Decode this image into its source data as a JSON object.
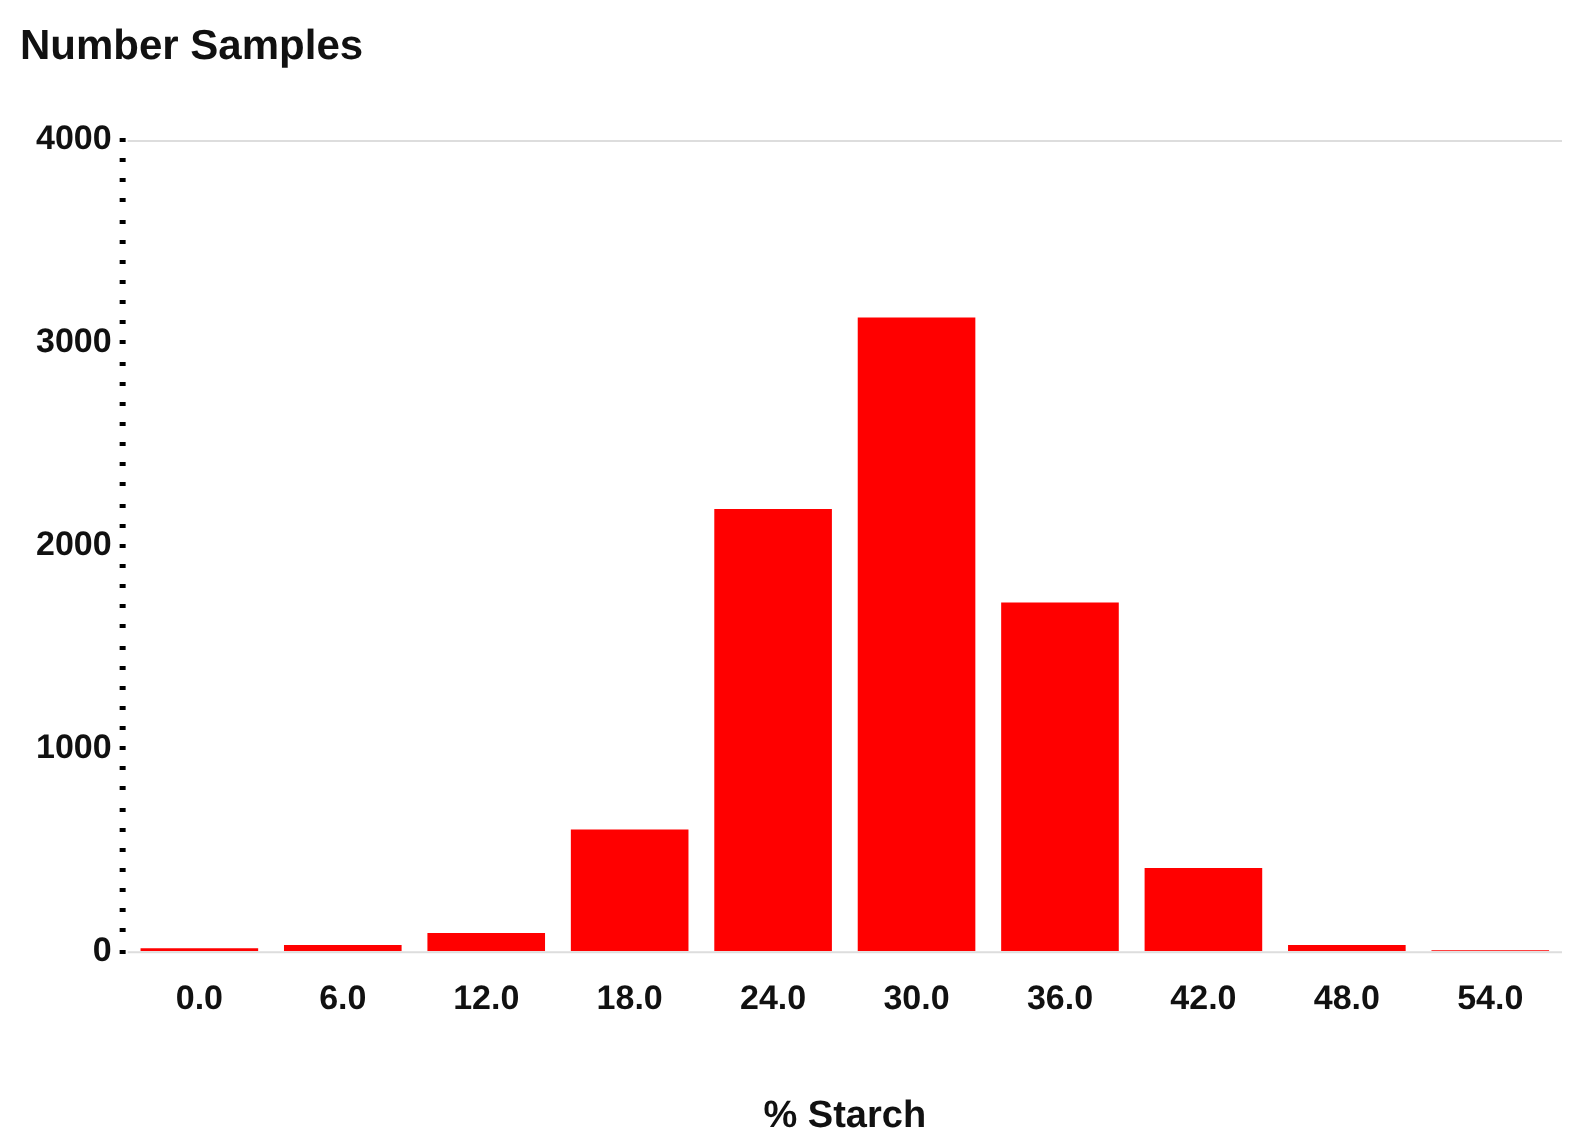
{
  "chart_data": {
    "type": "bar",
    "ylabel": "Number Samples",
    "xlabel": "% Starch",
    "categories": [
      "0.0",
      "6.0",
      "12.0",
      "18.0",
      "24.0",
      "30.0",
      "36.0",
      "42.0",
      "48.0",
      "54.0"
    ],
    "values": [
      15,
      30,
      90,
      600,
      2180,
      3125,
      1720,
      410,
      30,
      5
    ],
    "color": "#ff0000",
    "ylim": [
      0,
      4000
    ],
    "yticks": [
      0,
      {
        "value": 100,
        "label": null
      },
      {
        "value": 200,
        "label": null
      },
      {
        "value": 300,
        "label": null
      },
      {
        "value": 400,
        "label": null
      },
      {
        "value": 500,
        "label": null
      },
      {
        "value": 600,
        "label": null
      },
      {
        "value": 700,
        "label": null
      },
      {
        "value": 800,
        "label": null
      },
      {
        "value": 900,
        "label": null
      },
      1000,
      {
        "value": 1100,
        "label": null
      },
      {
        "value": 1200,
        "label": null
      },
      {
        "value": 1300,
        "label": null
      },
      {
        "value": 1400,
        "label": null
      },
      {
        "value": 1500,
        "label": null
      },
      {
        "value": 1600,
        "label": null
      },
      {
        "value": 1700,
        "label": null
      },
      {
        "value": 1800,
        "label": null
      },
      {
        "value": 1900,
        "label": null
      },
      2000,
      {
        "value": 2100,
        "label": null
      },
      {
        "value": 2200,
        "label": null
      },
      {
        "value": 2300,
        "label": null
      },
      {
        "value": 2400,
        "label": null
      },
      {
        "value": 2500,
        "label": null
      },
      {
        "value": 2600,
        "label": null
      },
      {
        "value": 2700,
        "label": null
      },
      {
        "value": 2800,
        "label": null
      },
      {
        "value": 2900,
        "label": null
      },
      3000,
      {
        "value": 3100,
        "label": null
      },
      {
        "value": 3200,
        "label": null
      },
      {
        "value": 3300,
        "label": null
      },
      {
        "value": 3400,
        "label": null
      },
      {
        "value": 3500,
        "label": null
      },
      {
        "value": 3600,
        "label": null
      },
      {
        "value": 3700,
        "label": null
      },
      {
        "value": 3800,
        "label": null
      },
      {
        "value": 3900,
        "label": null
      },
      4000
    ],
    "grid": false,
    "legend": false
  }
}
